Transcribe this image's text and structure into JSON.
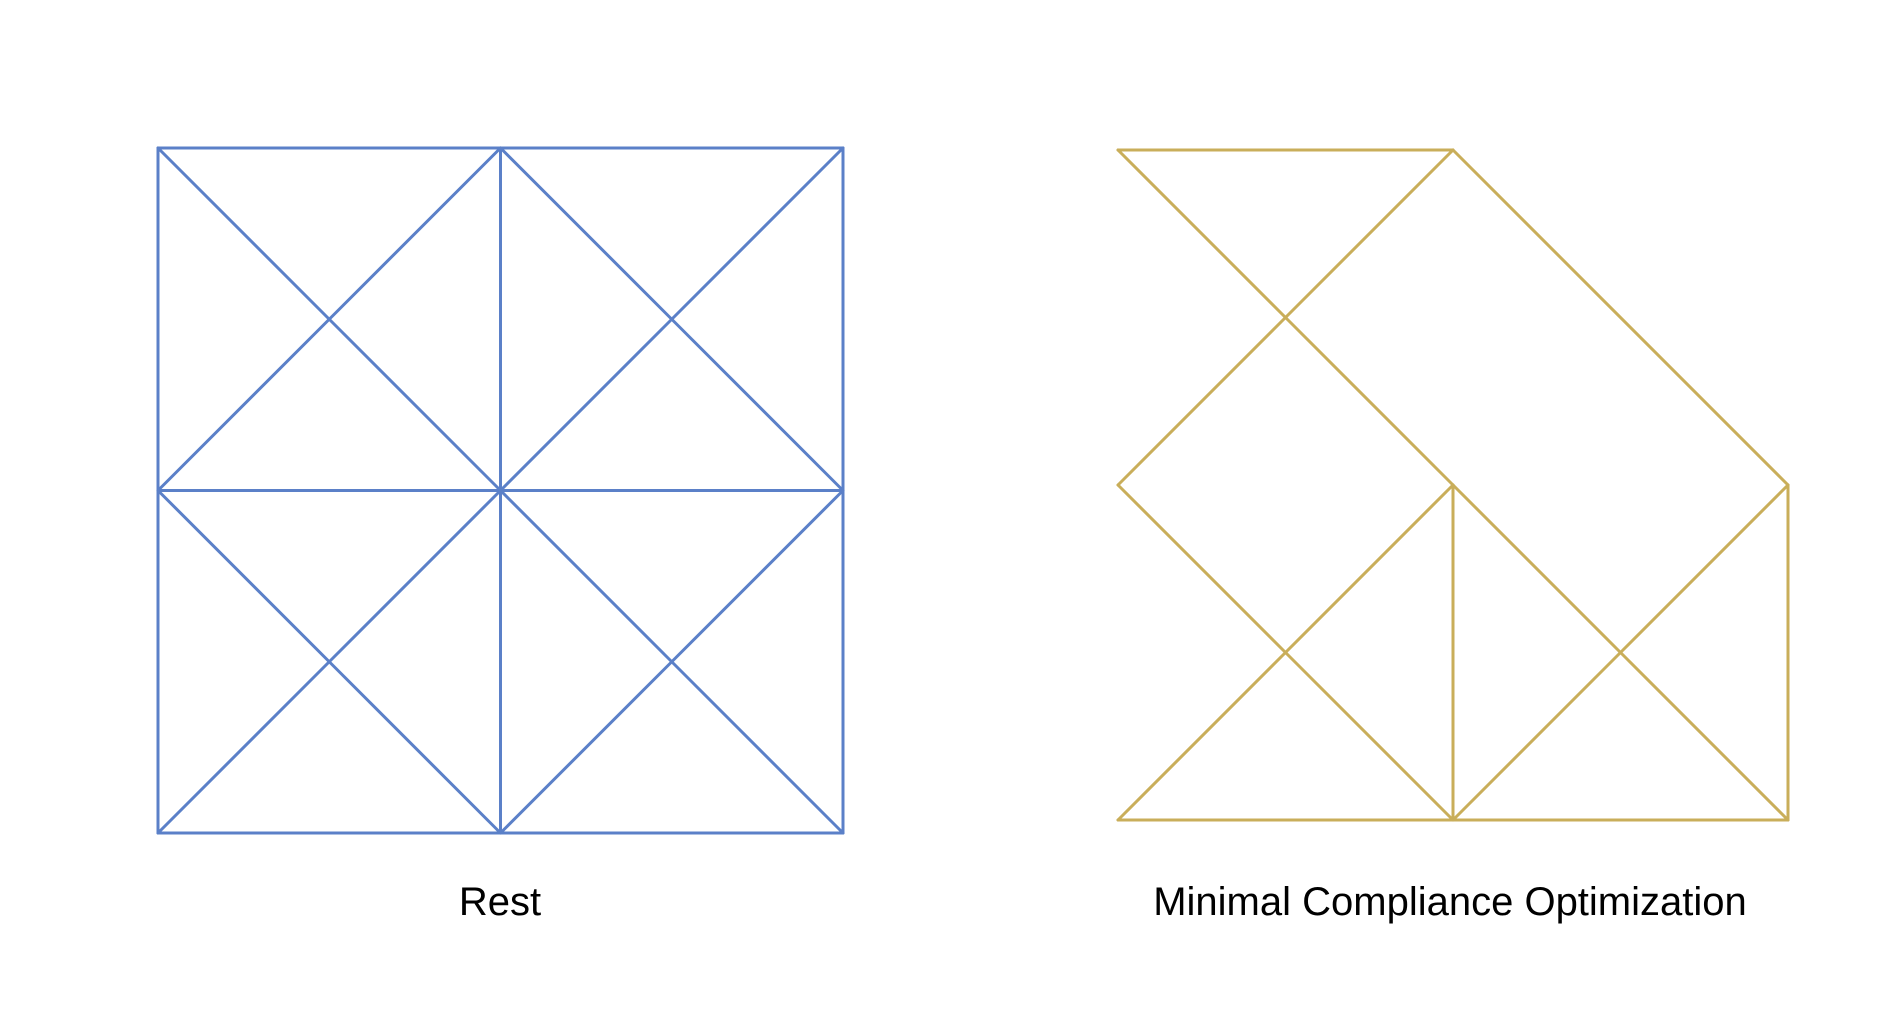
{
  "panels": [
    {
      "caption": "Rest",
      "color": "#5b80c8",
      "nodes": [
        [
          0,
          1
        ],
        [
          0.5,
          1
        ],
        [
          1,
          1
        ],
        [
          0.25,
          0.75
        ],
        [
          0.75,
          0.75
        ],
        [
          0,
          0.5
        ],
        [
          0.5,
          0.5
        ],
        [
          1,
          0.5
        ],
        [
          0.25,
          0.25
        ],
        [
          0.75,
          0.25
        ],
        [
          0,
          0
        ],
        [
          0.5,
          0
        ],
        [
          1,
          0
        ]
      ],
      "members": [
        [
          0,
          1
        ],
        [
          1,
          2
        ],
        [
          0,
          5
        ],
        [
          5,
          10
        ],
        [
          2,
          7
        ],
        [
          7,
          12
        ],
        [
          1,
          6
        ],
        [
          6,
          11
        ],
        [
          5,
          6
        ],
        [
          6,
          7
        ],
        [
          10,
          11
        ],
        [
          11,
          12
        ],
        [
          0,
          3
        ],
        [
          3,
          6
        ],
        [
          1,
          3
        ],
        [
          3,
          5
        ],
        [
          1,
          4
        ],
        [
          4,
          7
        ],
        [
          2,
          4
        ],
        [
          4,
          6
        ],
        [
          5,
          8
        ],
        [
          8,
          11
        ],
        [
          6,
          8
        ],
        [
          8,
          10
        ],
        [
          6,
          9
        ],
        [
          9,
          12
        ],
        [
          7,
          9
        ],
        [
          9,
          11
        ]
      ]
    },
    {
      "caption": "Minimal Compliance Optimization",
      "color": "#c9ae5a",
      "nodes": [
        [
          0,
          1
        ],
        [
          0.5,
          1
        ],
        [
          0.25,
          0.75
        ],
        [
          0,
          0.5
        ],
        [
          0.5,
          0.5
        ],
        [
          1,
          0.5
        ],
        [
          0.25,
          0.25
        ],
        [
          0.75,
          0.25
        ],
        [
          0,
          0
        ],
        [
          0.5,
          0
        ],
        [
          1,
          0
        ]
      ],
      "members": [
        [
          0,
          1
        ],
        [
          0,
          2
        ],
        [
          2,
          4
        ],
        [
          4,
          7
        ],
        [
          7,
          10
        ],
        [
          1,
          2
        ],
        [
          2,
          3
        ],
        [
          1,
          5
        ],
        [
          3,
          6
        ],
        [
          6,
          9
        ],
        [
          4,
          6
        ],
        [
          6,
          8
        ],
        [
          4,
          9
        ],
        [
          5,
          7
        ],
        [
          7,
          9
        ],
        [
          5,
          10
        ],
        [
          8,
          9
        ],
        [
          9,
          10
        ]
      ]
    }
  ]
}
